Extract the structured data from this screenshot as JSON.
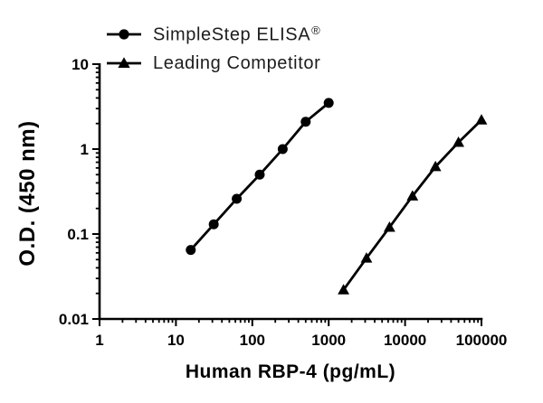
{
  "colors": {
    "ink": "#000000",
    "legend_text": "#1d1d1d",
    "background": "#ffffff"
  },
  "legend": {
    "items": [
      {
        "label": "SimpleStep ELISA",
        "mark": "®",
        "marker": "circle"
      },
      {
        "label": "Leading Competitor",
        "mark": "",
        "marker": "triangle"
      }
    ]
  },
  "chart_data": {
    "type": "line",
    "title": "",
    "xlabel": "Human RBP-4 (pg/mL)",
    "ylabel": "O.D. (450 nm)",
    "x_scale": "log",
    "y_scale": "log",
    "xlim": [
      1,
      100000
    ],
    "ylim": [
      0.01,
      10
    ],
    "x_ticks": [
      1,
      10,
      100,
      1000,
      10000,
      100000
    ],
    "x_tick_labels": [
      "1",
      "10",
      "100",
      "1000",
      "10000",
      "100000"
    ],
    "y_ticks": [
      0.01,
      0.1,
      1,
      10
    ],
    "y_tick_labels": [
      "0.01",
      "0.1",
      "1",
      "10"
    ],
    "grid": false,
    "legend_position": "above-plot-left",
    "series": [
      {
        "name": "SimpleStep ELISA®",
        "marker": "circle",
        "color": "#000000",
        "x": [
          15.63,
          31.25,
          62.5,
          125,
          250,
          500,
          1000
        ],
        "y": [
          0.065,
          0.13,
          0.26,
          0.5,
          1.0,
          2.1,
          3.5
        ]
      },
      {
        "name": "Leading Competitor",
        "marker": "triangle",
        "color": "#000000",
        "x": [
          1563,
          3125,
          6250,
          12500,
          25000,
          50000,
          100000
        ],
        "y": [
          0.022,
          0.052,
          0.12,
          0.28,
          0.62,
          1.2,
          2.2
        ]
      }
    ]
  }
}
